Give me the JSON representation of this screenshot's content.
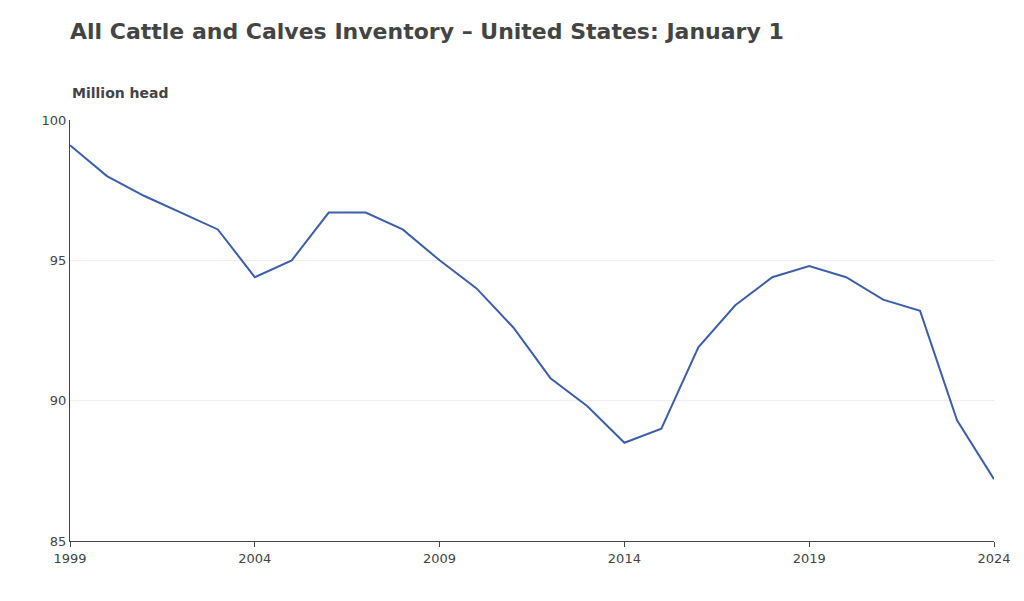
{
  "chart_data": {
    "type": "line",
    "title": "All Cattle and Calves Inventory – United States: January 1",
    "subtitle": "Million head",
    "x": [
      1999,
      2000,
      2001,
      2002,
      2003,
      2004,
      2005,
      2006,
      2007,
      2008,
      2009,
      2010,
      2011,
      2012,
      2013,
      2014,
      2015,
      2016,
      2017,
      2018,
      2019,
      2020,
      2021,
      2022,
      2023,
      2024
    ],
    "values": [
      99.1,
      98.0,
      97.3,
      96.7,
      96.1,
      94.4,
      95.0,
      96.7,
      96.7,
      96.1,
      95.0,
      94.0,
      92.6,
      90.8,
      89.8,
      88.5,
      89.0,
      91.9,
      93.4,
      94.4,
      94.8,
      94.4,
      93.6,
      93.2,
      89.3,
      87.2
    ],
    "color": "#3d5fa8",
    "xlim": [
      1999,
      2024
    ],
    "ylim": [
      85,
      100
    ],
    "xticks": [
      1999,
      2004,
      2009,
      2014,
      2019,
      2024
    ],
    "yticks": [
      85,
      90,
      95,
      100
    ],
    "grid": true
  }
}
